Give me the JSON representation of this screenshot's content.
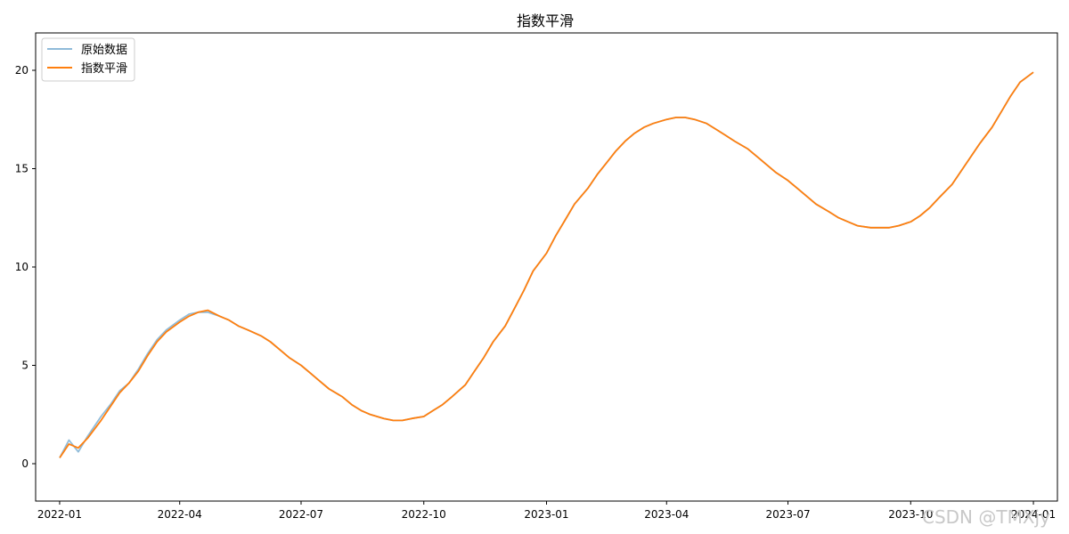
{
  "chart_data": {
    "type": "line",
    "title": "指数平滑",
    "xlabel": "",
    "ylabel": "",
    "x_start": "2022-01-01",
    "x_end": "2024-01-01",
    "xlim": [
      "2021-12-14",
      "2024-01-19"
    ],
    "ylim": [
      -1.9,
      21.9
    ],
    "x_ticks": [
      "2022-01",
      "2022-04",
      "2022-07",
      "2022-10",
      "2023-01",
      "2023-04",
      "2023-07",
      "2023-10",
      "2024-01"
    ],
    "y_ticks": [
      0,
      5,
      10,
      15,
      20
    ],
    "legend_position": "top-left",
    "grid": false,
    "series": [
      {
        "name": "原始数据",
        "color": "#1f77b4",
        "opacity": 0.5,
        "points": [
          [
            "2022-01-01",
            0.3
          ],
          [
            "2022-01-08",
            1.2
          ],
          [
            "2022-01-15",
            0.6
          ],
          [
            "2022-01-22",
            1.4
          ],
          [
            "2022-02-01",
            2.4
          ],
          [
            "2022-02-08",
            3.0
          ],
          [
            "2022-02-15",
            3.7
          ],
          [
            "2022-02-22",
            4.1
          ],
          [
            "2022-03-01",
            4.8
          ],
          [
            "2022-03-08",
            5.6
          ],
          [
            "2022-03-15",
            6.3
          ],
          [
            "2022-03-22",
            6.8
          ],
          [
            "2022-04-01",
            7.3
          ],
          [
            "2022-04-08",
            7.6
          ],
          [
            "2022-04-15",
            7.7
          ],
          [
            "2022-04-22",
            7.7
          ],
          [
            "2022-05-01",
            7.5
          ],
          [
            "2022-05-08",
            7.3
          ],
          [
            "2022-05-15",
            7.0
          ],
          [
            "2022-05-22",
            6.8
          ],
          [
            "2022-06-01",
            6.5
          ],
          [
            "2022-06-08",
            6.2
          ],
          [
            "2022-06-15",
            5.8
          ],
          [
            "2022-06-22",
            5.4
          ],
          [
            "2022-07-01",
            5.0
          ],
          [
            "2022-07-08",
            4.6
          ],
          [
            "2022-07-15",
            4.2
          ],
          [
            "2022-07-22",
            3.8
          ],
          [
            "2022-08-01",
            3.4
          ],
          [
            "2022-08-08",
            3.0
          ],
          [
            "2022-08-15",
            2.7
          ],
          [
            "2022-08-22",
            2.5
          ],
          [
            "2022-09-01",
            2.3
          ],
          [
            "2022-09-08",
            2.2
          ],
          [
            "2022-09-15",
            2.2
          ],
          [
            "2022-09-22",
            2.3
          ],
          [
            "2022-10-01",
            2.4
          ],
          [
            "2022-10-08",
            2.7
          ],
          [
            "2022-10-15",
            3.0
          ],
          [
            "2022-10-22",
            3.4
          ],
          [
            "2022-11-01",
            4.0
          ],
          [
            "2022-11-08",
            4.7
          ],
          [
            "2022-11-15",
            5.4
          ],
          [
            "2022-11-22",
            6.2
          ],
          [
            "2022-12-01",
            7.0
          ],
          [
            "2022-12-08",
            7.9
          ],
          [
            "2022-12-15",
            8.8
          ],
          [
            "2022-12-22",
            9.8
          ],
          [
            "2023-01-01",
            10.7
          ],
          [
            "2023-01-08",
            11.6
          ],
          [
            "2023-01-15",
            12.4
          ],
          [
            "2023-01-22",
            13.2
          ],
          [
            "2023-02-01",
            14.0
          ],
          [
            "2023-02-08",
            14.7
          ],
          [
            "2023-02-15",
            15.3
          ],
          [
            "2023-02-22",
            15.9
          ],
          [
            "2023-03-01",
            16.4
          ],
          [
            "2023-03-08",
            16.8
          ],
          [
            "2023-03-15",
            17.1
          ],
          [
            "2023-03-22",
            17.3
          ],
          [
            "2023-04-01",
            17.5
          ],
          [
            "2023-04-08",
            17.6
          ],
          [
            "2023-04-15",
            17.6
          ],
          [
            "2023-04-22",
            17.5
          ],
          [
            "2023-05-01",
            17.3
          ],
          [
            "2023-05-08",
            17.0
          ],
          [
            "2023-05-15",
            16.7
          ],
          [
            "2023-05-22",
            16.4
          ],
          [
            "2023-06-01",
            16.0
          ],
          [
            "2023-06-08",
            15.6
          ],
          [
            "2023-06-15",
            15.2
          ],
          [
            "2023-06-22",
            14.8
          ],
          [
            "2023-07-01",
            14.4
          ],
          [
            "2023-07-08",
            14.0
          ],
          [
            "2023-07-15",
            13.6
          ],
          [
            "2023-07-22",
            13.2
          ],
          [
            "2023-08-01",
            12.8
          ],
          [
            "2023-08-08",
            12.5
          ],
          [
            "2023-08-15",
            12.3
          ],
          [
            "2023-08-22",
            12.1
          ],
          [
            "2023-09-01",
            12.0
          ],
          [
            "2023-09-08",
            12.0
          ],
          [
            "2023-09-15",
            12.0
          ],
          [
            "2023-09-22",
            12.1
          ],
          [
            "2023-10-01",
            12.3
          ],
          [
            "2023-10-08",
            12.6
          ],
          [
            "2023-10-15",
            13.0
          ],
          [
            "2023-10-22",
            13.5
          ],
          [
            "2023-11-01",
            14.2
          ],
          [
            "2023-11-08",
            14.9
          ],
          [
            "2023-11-15",
            15.6
          ],
          [
            "2023-11-22",
            16.3
          ],
          [
            "2023-12-01",
            17.1
          ],
          [
            "2023-12-08",
            17.9
          ],
          [
            "2023-12-15",
            18.7
          ],
          [
            "2023-12-22",
            19.4
          ],
          [
            "2024-01-01",
            19.9
          ]
        ]
      },
      {
        "name": "指数平滑",
        "color": "#ff7f0e",
        "opacity": 1,
        "points": [
          [
            "2022-01-01",
            0.3
          ],
          [
            "2022-01-08",
            1.0
          ],
          [
            "2022-01-15",
            0.8
          ],
          [
            "2022-01-22",
            1.3
          ],
          [
            "2022-02-01",
            2.2
          ],
          [
            "2022-02-08",
            2.9
          ],
          [
            "2022-02-15",
            3.6
          ],
          [
            "2022-02-22",
            4.1
          ],
          [
            "2022-03-01",
            4.7
          ],
          [
            "2022-03-08",
            5.5
          ],
          [
            "2022-03-15",
            6.2
          ],
          [
            "2022-03-22",
            6.7
          ],
          [
            "2022-04-01",
            7.2
          ],
          [
            "2022-04-08",
            7.5
          ],
          [
            "2022-04-15",
            7.7
          ],
          [
            "2022-04-22",
            7.8
          ],
          [
            "2022-05-01",
            7.5
          ],
          [
            "2022-05-08",
            7.3
          ],
          [
            "2022-05-15",
            7.0
          ],
          [
            "2022-05-22",
            6.8
          ],
          [
            "2022-06-01",
            6.5
          ],
          [
            "2022-06-08",
            6.2
          ],
          [
            "2022-06-15",
            5.8
          ],
          [
            "2022-06-22",
            5.4
          ],
          [
            "2022-07-01",
            5.0
          ],
          [
            "2022-07-08",
            4.6
          ],
          [
            "2022-07-15",
            4.2
          ],
          [
            "2022-07-22",
            3.8
          ],
          [
            "2022-08-01",
            3.4
          ],
          [
            "2022-08-08",
            3.0
          ],
          [
            "2022-08-15",
            2.7
          ],
          [
            "2022-08-22",
            2.5
          ],
          [
            "2022-09-01",
            2.3
          ],
          [
            "2022-09-08",
            2.2
          ],
          [
            "2022-09-15",
            2.2
          ],
          [
            "2022-09-22",
            2.3
          ],
          [
            "2022-10-01",
            2.4
          ],
          [
            "2022-10-08",
            2.7
          ],
          [
            "2022-10-15",
            3.0
          ],
          [
            "2022-10-22",
            3.4
          ],
          [
            "2022-11-01",
            4.0
          ],
          [
            "2022-11-08",
            4.7
          ],
          [
            "2022-11-15",
            5.4
          ],
          [
            "2022-11-22",
            6.2
          ],
          [
            "2022-12-01",
            7.0
          ],
          [
            "2022-12-08",
            7.9
          ],
          [
            "2022-12-15",
            8.8
          ],
          [
            "2022-12-22",
            9.8
          ],
          [
            "2023-01-01",
            10.7
          ],
          [
            "2023-01-08",
            11.6
          ],
          [
            "2023-01-15",
            12.4
          ],
          [
            "2023-01-22",
            13.2
          ],
          [
            "2023-02-01",
            14.0
          ],
          [
            "2023-02-08",
            14.7
          ],
          [
            "2023-02-15",
            15.3
          ],
          [
            "2023-02-22",
            15.9
          ],
          [
            "2023-03-01",
            16.4
          ],
          [
            "2023-03-08",
            16.8
          ],
          [
            "2023-03-15",
            17.1
          ],
          [
            "2023-03-22",
            17.3
          ],
          [
            "2023-04-01",
            17.5
          ],
          [
            "2023-04-08",
            17.6
          ],
          [
            "2023-04-15",
            17.6
          ],
          [
            "2023-04-22",
            17.5
          ],
          [
            "2023-05-01",
            17.3
          ],
          [
            "2023-05-08",
            17.0
          ],
          [
            "2023-05-15",
            16.7
          ],
          [
            "2023-05-22",
            16.4
          ],
          [
            "2023-06-01",
            16.0
          ],
          [
            "2023-06-08",
            15.6
          ],
          [
            "2023-06-15",
            15.2
          ],
          [
            "2023-06-22",
            14.8
          ],
          [
            "2023-07-01",
            14.4
          ],
          [
            "2023-07-08",
            14.0
          ],
          [
            "2023-07-15",
            13.6
          ],
          [
            "2023-07-22",
            13.2
          ],
          [
            "2023-08-01",
            12.8
          ],
          [
            "2023-08-08",
            12.5
          ],
          [
            "2023-08-15",
            12.3
          ],
          [
            "2023-08-22",
            12.1
          ],
          [
            "2023-09-01",
            12.0
          ],
          [
            "2023-09-08",
            12.0
          ],
          [
            "2023-09-15",
            12.0
          ],
          [
            "2023-09-22",
            12.1
          ],
          [
            "2023-10-01",
            12.3
          ],
          [
            "2023-10-08",
            12.6
          ],
          [
            "2023-10-15",
            13.0
          ],
          [
            "2023-10-22",
            13.5
          ],
          [
            "2023-11-01",
            14.2
          ],
          [
            "2023-11-08",
            14.9
          ],
          [
            "2023-11-15",
            15.6
          ],
          [
            "2023-11-22",
            16.3
          ],
          [
            "2023-12-01",
            17.1
          ],
          [
            "2023-12-08",
            17.9
          ],
          [
            "2023-12-15",
            18.7
          ],
          [
            "2023-12-22",
            19.4
          ],
          [
            "2024-01-01",
            19.9
          ]
        ]
      }
    ]
  },
  "watermark": "CSDN @TMXjy"
}
